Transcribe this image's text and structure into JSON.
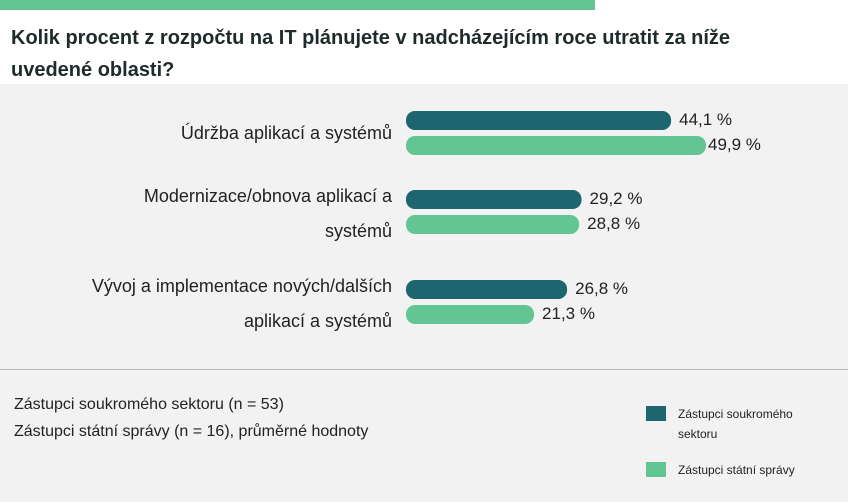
{
  "title": "Kolik procent z rozpočtu na IT plánujete v nadcházejícím roce utratit za níže uvedené oblasti?",
  "colors": {
    "private": "#1d6670",
    "state": "#63c494",
    "accent_bar": "#63c494"
  },
  "chart_data": {
    "type": "bar",
    "orientation": "horizontal",
    "categories": [
      [
        "Údržba aplikací a systémů"
      ],
      [
        "Modernizace/obnova aplikací a",
        "systémů"
      ],
      [
        "Vývoj a implementace nových/dalších",
        "aplikací a systémů"
      ]
    ],
    "series": [
      {
        "name": "Zástupci soukromého sektoru",
        "values": [
          44.1,
          29.2,
          26.8
        ],
        "labels": [
          "44,1 %",
          "29,2 %",
          "26,8 %"
        ]
      },
      {
        "name": "Zástupci státní správy",
        "values": [
          49.9,
          28.8,
          21.3
        ],
        "labels": [
          "49,9 %",
          "28,8 %",
          "21,3 %"
        ]
      }
    ],
    "xlim": [
      0,
      50
    ],
    "grid": false,
    "legend_position": "bottom-right"
  },
  "notes": [
    "Zástupci soukromého sektoru (n = 53)",
    "Zástupci státní správy (n = 16), průměrné hodnoty"
  ],
  "legend": [
    {
      "label": "Zástupci soukromého sektoru",
      "color": "#1d6670"
    },
    {
      "label": "Zástupci státní správy",
      "color": "#63c494"
    }
  ]
}
